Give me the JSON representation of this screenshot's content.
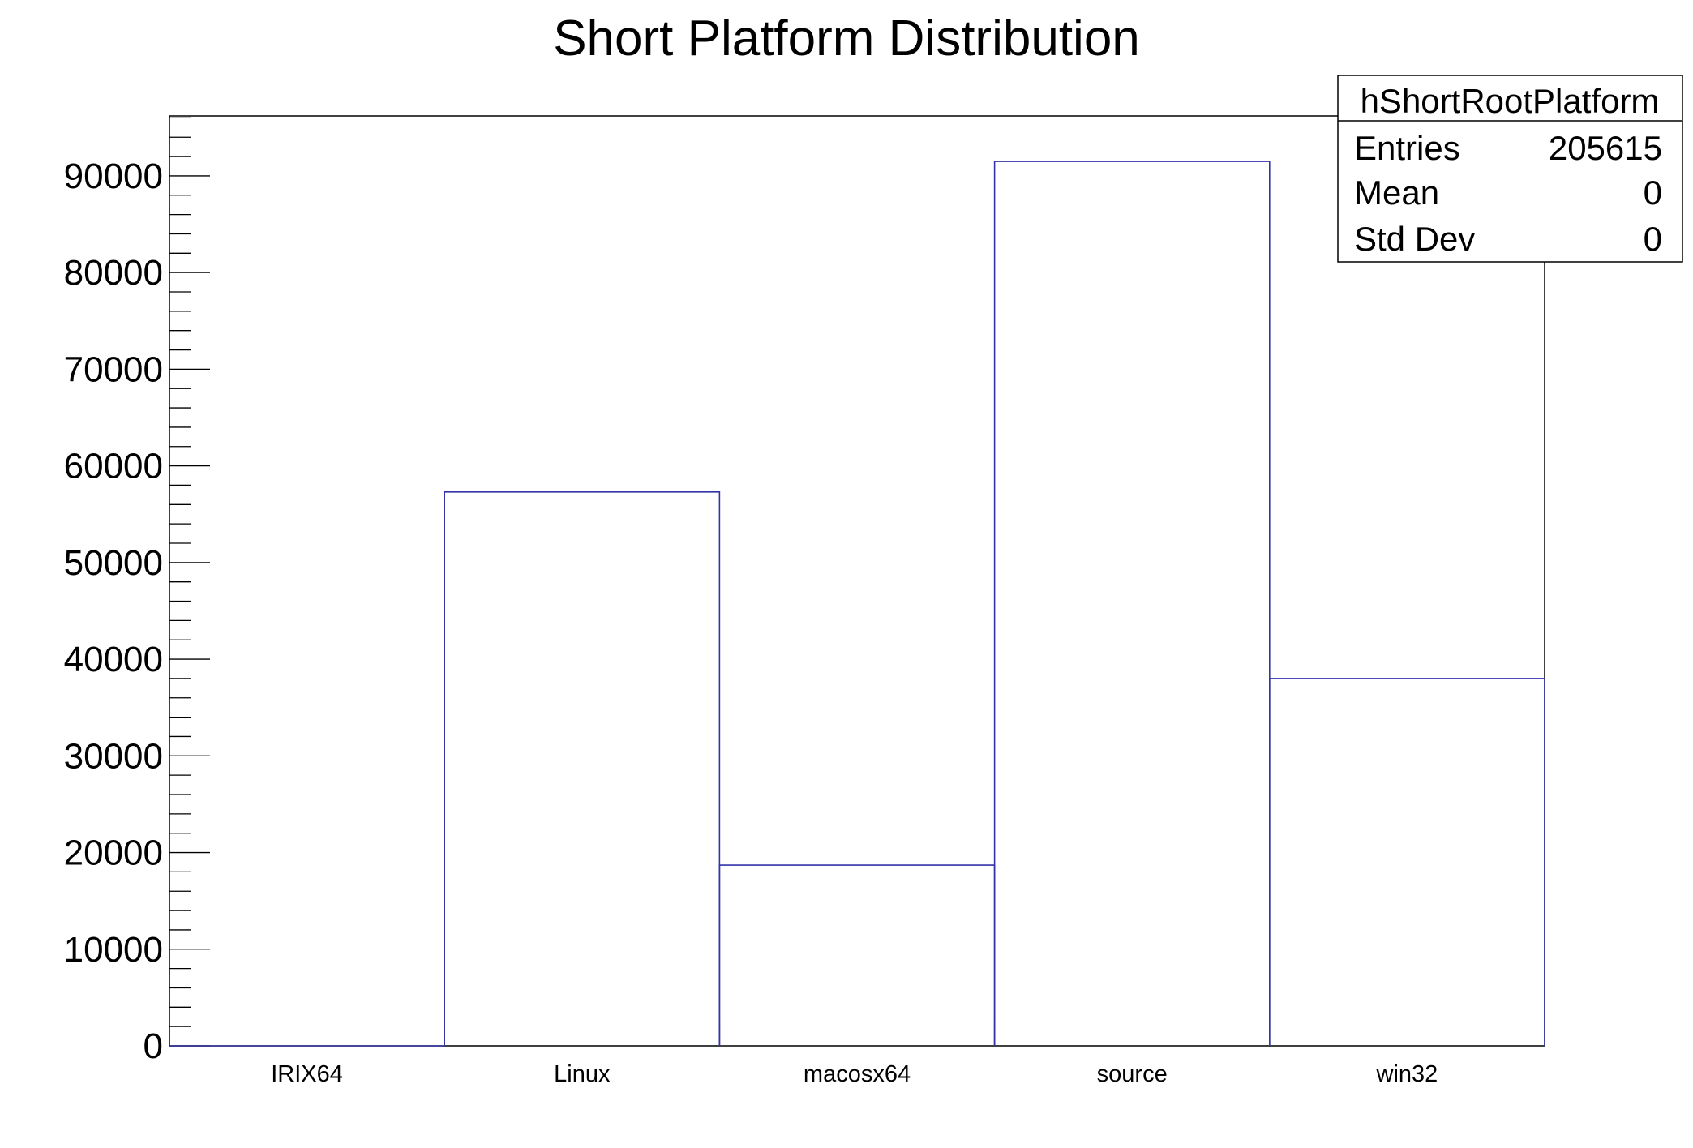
{
  "chart_data": {
    "type": "bar",
    "style": "step-histogram",
    "title": "Short Platform Distribution",
    "xlabel": "",
    "ylabel": "",
    "categories": [
      "IRIX64",
      "Linux",
      "macosx64",
      "source",
      "win32"
    ],
    "values": [
      0,
      57300,
      18700,
      91500,
      38000
    ],
    "ylim": [
      0,
      96200
    ],
    "yticks": [
      0,
      10000,
      20000,
      30000,
      40000,
      50000,
      60000,
      70000,
      80000,
      90000
    ],
    "ytick_labels": [
      "0",
      "10000",
      "20000",
      "30000",
      "40000",
      "50000",
      "60000",
      "70000",
      "80000",
      "90000"
    ],
    "grid": false,
    "line_color": "#3333aa",
    "stats_box": {
      "name": "hShortRootPlatform",
      "rows": [
        {
          "label": "Entries",
          "value": "205615"
        },
        {
          "label": "Mean",
          "value": "0"
        },
        {
          "label": "Std Dev",
          "value": "0"
        }
      ],
      "position": "top-right"
    }
  }
}
